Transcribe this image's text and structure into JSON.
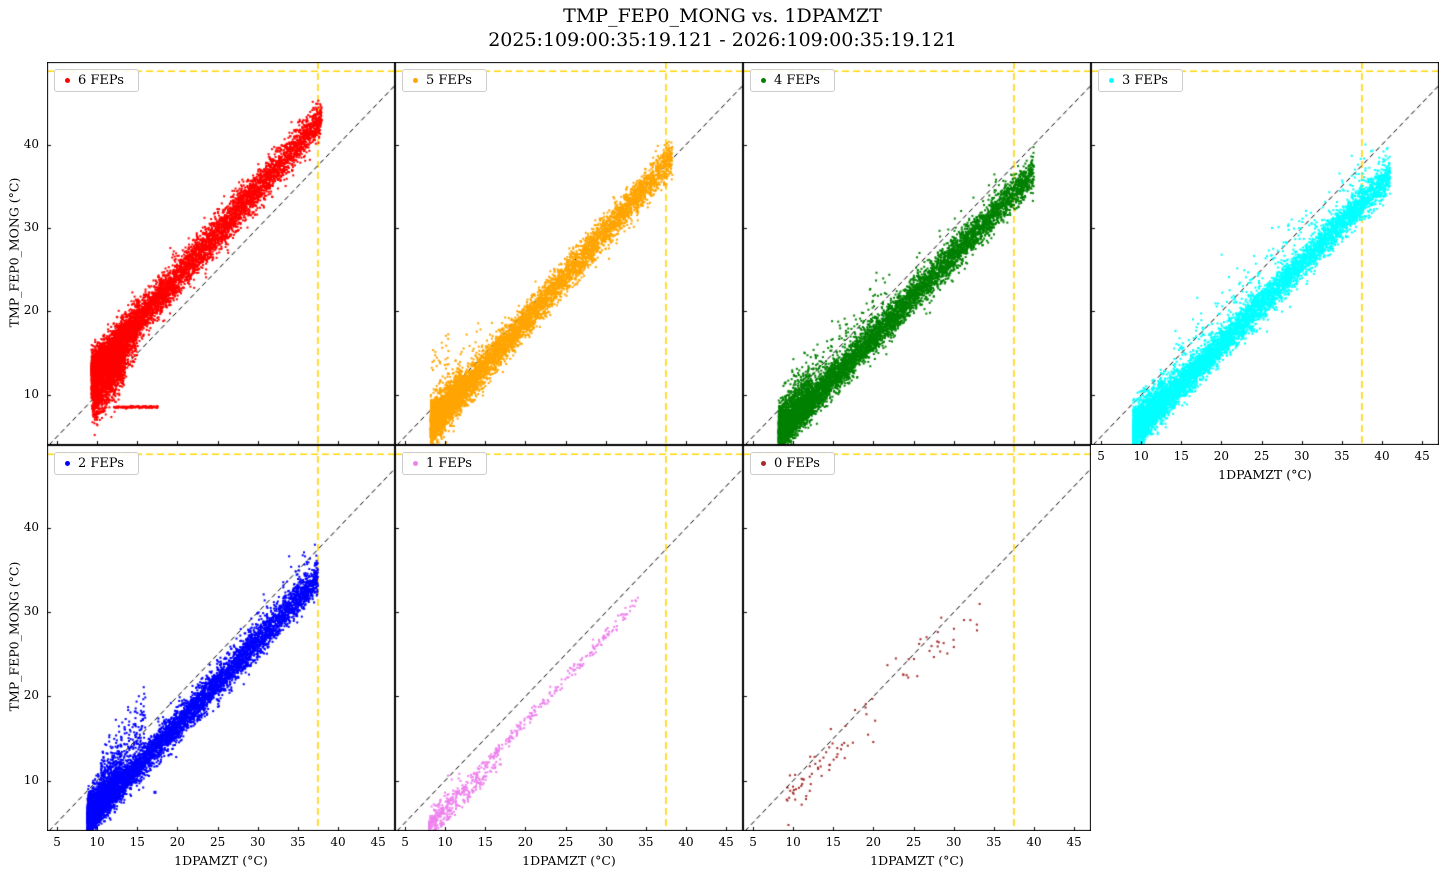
{
  "title": "TMP_FEP0_MONG vs. 1DPAMZT",
  "subtitle": "2025:109:00:35:19.121 - 2026:109:00:35:19.121",
  "chart_data": {
    "type": "scatter",
    "title": "TMP_FEP0_MONG vs. 1DPAMZT",
    "subtitle": "2025:109:00:35:19.121 - 2026:109:00:35:19.121",
    "xlabel": "1DPAMZT (°C)",
    "ylabel": "TMP_FEP0_MONG (°C)",
    "xlim": [
      3.75,
      47.1
    ],
    "ylim": [
      4.0,
      49.9
    ],
    "xticks": [
      5,
      10,
      15,
      20,
      25,
      30,
      35,
      40,
      45
    ],
    "yticks": [
      10,
      20,
      30,
      40
    ],
    "grid": false,
    "legend_position": "upper left",
    "reference_lines": {
      "diagonal": {
        "equation": "y = x",
        "color": "#000000",
        "style": "dashed"
      },
      "hline_y": 48.8,
      "vline_x": 37.5,
      "limit_color": "#ffd700",
      "limit_style": "dashed"
    },
    "panels": [
      {
        "label": "6 FEPs",
        "color": "#ff0000",
        "row": 0,
        "col": 0,
        "seed": 101,
        "x_range": [
          9.3,
          38.2
        ],
        "y_range": [
          7.5,
          45.3
        ],
        "components": [
          {
            "n": 6000,
            "x": [
              9.3,
              38.0
            ],
            "xpow": 1.5,
            "slope": 1.06,
            "intercept": 2.9,
            "spread": 1.1
          },
          {
            "n": 1500,
            "x": [
              9.3,
              15.0
            ],
            "xpow": 1.2,
            "slope": 1.25,
            "intercept": -0.5,
            "spread": 1.6
          },
          {
            "n": 700,
            "x": [
              9.5,
              13.5
            ],
            "xpow": 1.0,
            "slope": 1.3,
            "intercept": -3.5,
            "spread": 1.2
          },
          {
            "n": 130,
            "x": [
              12.0,
              17.6
            ],
            "xpow": 1.0,
            "slope": 0.0,
            "intercept": 8.55,
            "spread": 0.07
          },
          {
            "n": 50,
            "x": [
              9.3,
              12.5
            ],
            "xpow": 1.0,
            "slope": 1.0,
            "intercept": -2.0,
            "spread": 1.2
          }
        ]
      },
      {
        "label": "5 FEPs",
        "color": "#ffa500",
        "row": 0,
        "col": 1,
        "seed": 202,
        "x_range": [
          8.2,
          38.5
        ],
        "y_range": [
          5.5,
          38.5
        ],
        "components": [
          {
            "n": 6000,
            "x": [
              8.2,
              38.3
            ],
            "xpow": 1.6,
            "slope": 1.07,
            "intercept": -2.5,
            "spread": 1.0
          },
          {
            "n": 800,
            "x": [
              8.2,
              12.0
            ],
            "xpow": 1.2,
            "slope": 1.1,
            "intercept": -2.2,
            "spread": 1.5
          },
          {
            "n": 25,
            "x": [
              8.3,
              10.5
            ],
            "xpow": 1.0,
            "slope": 1.0,
            "intercept": 5.5,
            "spread": 1.2
          },
          {
            "n": 15,
            "x": [
              11.0,
              15.0
            ],
            "xpow": 1.0,
            "slope": 1.0,
            "intercept": 3.0,
            "spread": 1.0
          }
        ]
      },
      {
        "label": "4 FEPs",
        "color": "#008000",
        "row": 0,
        "col": 2,
        "seed": 303,
        "x_range": [
          8.2,
          40.0
        ],
        "y_range": [
          5.5,
          37.0
        ],
        "components": [
          {
            "n": 6500,
            "x": [
              8.2,
              40.0
            ],
            "xpow": 1.6,
            "slope": 0.99,
            "intercept": -2.9,
            "spread": 1.0
          },
          {
            "n": 700,
            "x": [
              8.2,
              12.0
            ],
            "xpow": 1.2,
            "slope": 1.1,
            "intercept": -2.5,
            "spread": 1.5
          },
          {
            "n": 180,
            "x": [
              10.0,
              22.0
            ],
            "xpow": 1.3,
            "slope": 1.05,
            "intercept": -0.5,
            "spread": 1.6
          },
          {
            "n": 20,
            "x": [
              25.0,
              36.0
            ],
            "xpow": 1.0,
            "slope": 1.0,
            "intercept": 0.0,
            "spread": 1.2
          }
        ]
      },
      {
        "label": "3 FEPs",
        "color": "#00ffff",
        "row": 0,
        "col": 3,
        "seed": 404,
        "x_range": [
          9.0,
          41.0
        ],
        "y_range": [
          5.5,
          39.0
        ],
        "components": [
          {
            "n": 6500,
            "x": [
              9.0,
              41.0
            ],
            "xpow": 1.6,
            "slope": 0.965,
            "intercept": -3.2,
            "spread": 1.0
          },
          {
            "n": 600,
            "x": [
              9.0,
              13.0
            ],
            "xpow": 1.2,
            "slope": 1.05,
            "intercept": -3.0,
            "spread": 1.4
          },
          {
            "n": 220,
            "x": [
              14.0,
              38.0
            ],
            "xpow": 1.4,
            "slope": 1.0,
            "intercept": -0.8,
            "spread": 1.8
          },
          {
            "n": 40,
            "x": [
              36.0,
              41.0
            ],
            "xpow": 1.0,
            "slope": 1.0,
            "intercept": -2.2,
            "spread": 1.4
          }
        ]
      },
      {
        "label": "2 FEPs",
        "color": "#0000ff",
        "row": 1,
        "col": 0,
        "seed": 505,
        "x_range": [
          8.8,
          38.3
        ],
        "y_range": [
          4.5,
          37.3
        ],
        "components": [
          {
            "n": 6000,
            "x": [
              8.8,
              37.5
            ],
            "xpow": 1.6,
            "slope": 0.995,
            "intercept": -3.3,
            "spread": 0.95
          },
          {
            "n": 700,
            "x": [
              8.8,
              13.0
            ],
            "xpow": 1.2,
            "slope": 1.1,
            "intercept": -3.2,
            "spread": 1.4
          },
          {
            "n": 250,
            "x": [
              10.5,
              16.0
            ],
            "xpow": 1.3,
            "slope": 1.2,
            "intercept": -2.0,
            "spread": 1.7
          },
          {
            "n": 120,
            "x": [
              27.0,
              38.0
            ],
            "xpow": 1.2,
            "slope": 1.15,
            "intercept": -6.5,
            "spread": 1.3
          }
        ],
        "extra_points": [
          [
            17.2,
            8.6
          ]
        ]
      },
      {
        "label": "1 FEPs",
        "color": "#ee82ee",
        "row": 1,
        "col": 1,
        "seed": 606,
        "x_range": [
          8.0,
          34.0
        ],
        "y_range": [
          4.2,
          31.8
        ],
        "components": [
          {
            "n": 420,
            "x": [
              8.0,
              34.0
            ],
            "xpow": 1.8,
            "slope": 1.03,
            "intercept": -3.6,
            "spread": 0.4
          },
          {
            "n": 130,
            "x": [
              8.5,
              17.0
            ],
            "xpow": 1.3,
            "slope": 1.0,
            "intercept": -4.6,
            "spread": 0.35
          },
          {
            "n": 60,
            "x": [
              8.0,
              12.0
            ],
            "xpow": 1.0,
            "slope": 1.05,
            "intercept": -3.0,
            "spread": 0.7
          }
        ]
      },
      {
        "label": "0 FEPs",
        "color": "#a52a2a",
        "row": 1,
        "col": 2,
        "seed": 707,
        "x_range": [
          9.0,
          33.5
        ],
        "y_range": [
          6.5,
          32.0
        ],
        "components": [
          {
            "n": 55,
            "x": [
              9.0,
              17.0
            ],
            "xpow": 1.3,
            "slope": 1.05,
            "intercept": -2.3,
            "spread": 1.3
          },
          {
            "n": 40,
            "x": [
              17.0,
              33.5
            ],
            "xpow": 1.0,
            "slope": 1.0,
            "intercept": -1.6,
            "spread": 1.6
          }
        ]
      }
    ]
  }
}
